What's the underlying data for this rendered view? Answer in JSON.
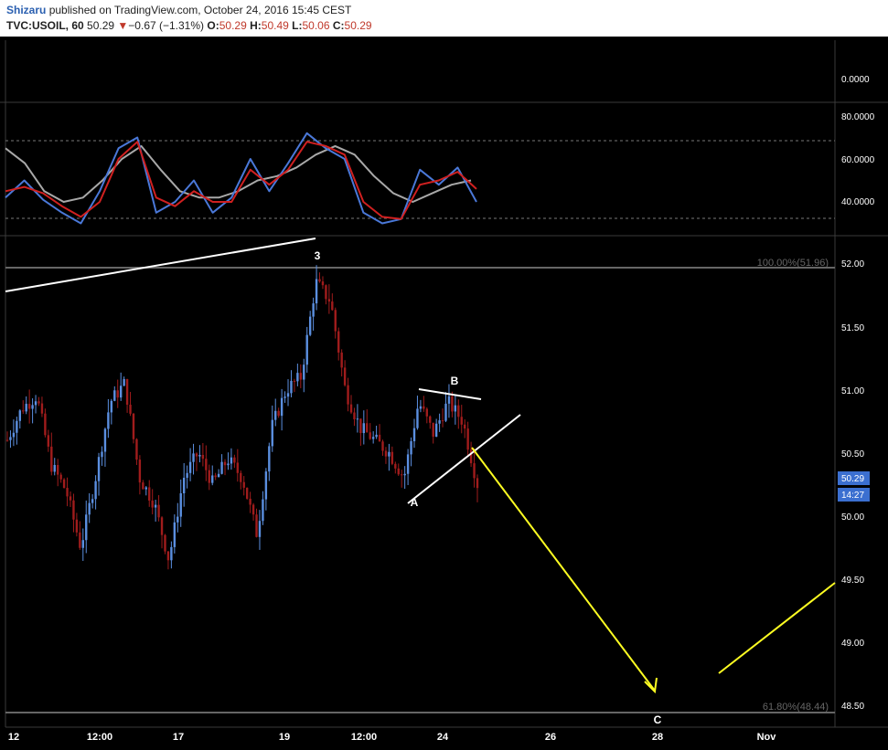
{
  "header": {
    "author": "Shizaru",
    "published_text": "published on TradingView.com, October 24, 2016 15:45 CEST",
    "symbol": "TVC:USOIL, 60",
    "last": "50.29",
    "change_arrow": "▼",
    "change": "−0.67 (−1.31%)",
    "o_label": "O:",
    "o_value": "50.29",
    "h_label": "H:",
    "h_value": "50.49",
    "l_label": "L:",
    "l_value": "50.06",
    "c_label": "C:",
    "c_value": "50.29"
  },
  "colors": {
    "background": "#000000",
    "bull_candle": "#5b8fe0",
    "bear_candle": "#a01c1c",
    "rsi_line": "#4a78d8",
    "rsi_signal": "#d02020",
    "rsi_slow": "#a8a8a8",
    "trendline": "#ffffff",
    "projection": "#ffff22",
    "fib_line": "#666666",
    "price_tag": "#3b6fd0"
  },
  "indicator": {
    "axis_labels": [
      "0.0000",
      "80.0000",
      "60.0000",
      "40.0000"
    ],
    "levels": [
      0,
      80,
      60,
      40
    ]
  },
  "price_axis": {
    "labels": [
      "52.00",
      "51.50",
      "51.00",
      "50.50",
      "50.00",
      "49.50",
      "49.00",
      "48.50"
    ],
    "last_price_tag": "50.29",
    "countdown_tag": "14:27"
  },
  "time_axis": {
    "labels": [
      "12",
      "12:00",
      "17",
      "19",
      "12:00",
      "24",
      "26",
      "28",
      "Nov"
    ]
  },
  "annotations": {
    "wave_3": "3",
    "wave_a": "A",
    "wave_b": "B",
    "wave_c": "C",
    "fib_100": "100.00%(51.96)",
    "fib_618": "61.80%(48.44)"
  },
  "chart_data": {
    "type": "candlestick",
    "symbol": "TVC:USOIL",
    "interval": "60",
    "y_range": [
      48.35,
      52.12
    ],
    "fib_levels": [
      {
        "label": "100.00%(51.96)",
        "value": 51.96
      },
      {
        "label": "61.80%(48.44)",
        "value": 48.44
      }
    ],
    "close_path": [
      50.6,
      50.85,
      50.95,
      50.4,
      50.2,
      49.75,
      50.3,
      50.9,
      51.05,
      50.3,
      50.1,
      49.65,
      50.3,
      50.5,
      50.25,
      50.45,
      50.3,
      49.85,
      50.7,
      51.0,
      51.1,
      51.85,
      51.7,
      51.0,
      50.7,
      50.6,
      50.5,
      50.3,
      50.9,
      50.65,
      50.9,
      50.75,
      50.25
    ],
    "rsi": [
      42,
      50,
      41,
      35,
      30,
      45,
      65,
      70,
      35,
      40,
      50,
      35,
      42,
      60,
      45,
      58,
      72,
      65,
      60,
      35,
      30,
      32,
      55,
      48,
      56,
      40
    ],
    "rsi_signal": [
      45,
      47,
      44,
      38,
      33,
      40,
      60,
      68,
      42,
      38,
      45,
      40,
      40,
      55,
      48,
      55,
      68,
      66,
      62,
      40,
      33,
      32,
      48,
      50,
      54,
      46
    ],
    "rsi_slow": [
      65,
      58,
      45,
      40,
      42,
      50,
      60,
      66,
      55,
      45,
      42,
      42,
      45,
      50,
      52,
      56,
      62,
      66,
      62,
      52,
      44,
      40,
      44,
      48,
      50
    ]
  }
}
